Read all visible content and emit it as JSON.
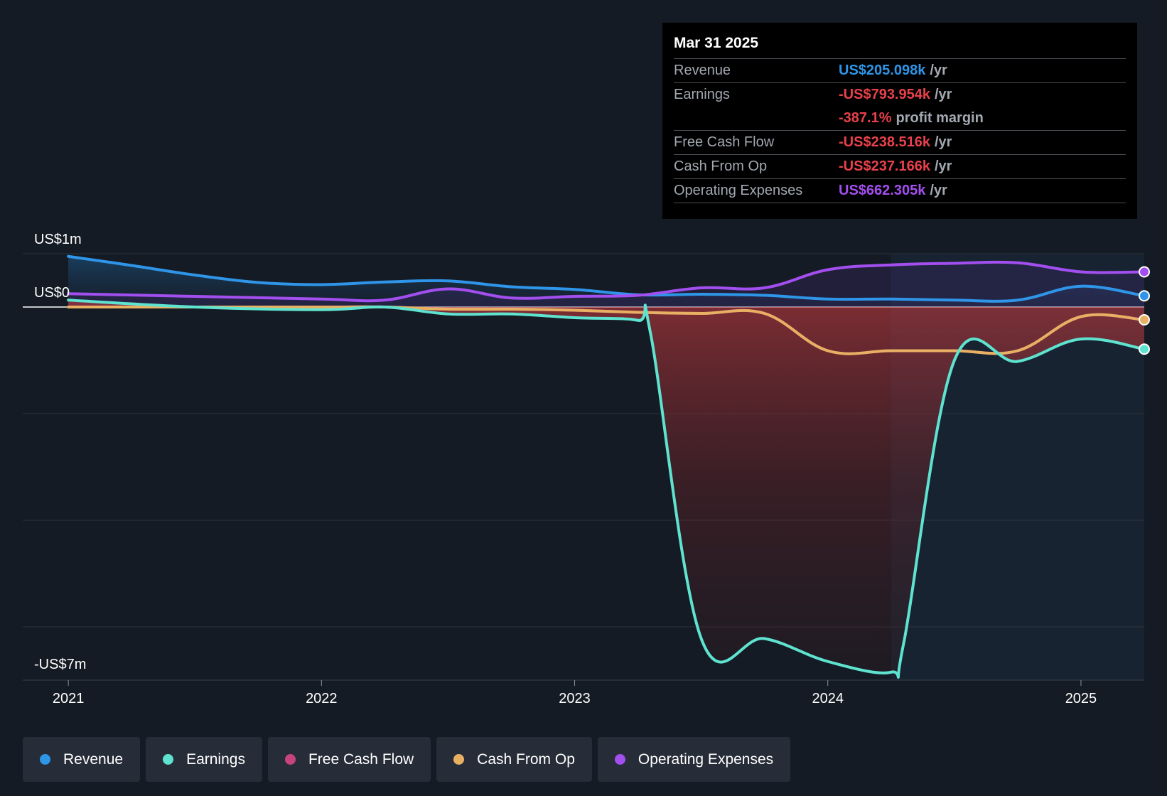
{
  "tooltip": {
    "date": "Mar 31 2025",
    "rows": [
      {
        "label": "Revenue",
        "value": "US$205.098k",
        "unit": "/yr",
        "color": "#2f95e8"
      },
      {
        "label": "Earnings",
        "value": "-US$793.954k",
        "unit": "/yr",
        "color": "#e8414b"
      },
      {
        "label": "",
        "value": "-387.1%",
        "unit": "profit margin",
        "color": "#e8414b"
      },
      {
        "label": "Free Cash Flow",
        "value": "-US$238.516k",
        "unit": "/yr",
        "color": "#e8414b"
      },
      {
        "label": "Cash From Op",
        "value": "-US$237.166k",
        "unit": "/yr",
        "color": "#e8414b"
      },
      {
        "label": "Operating Expenses",
        "value": "US$662.305k",
        "unit": "/yr",
        "color": "#a34ff0"
      }
    ]
  },
  "legend": [
    {
      "label": "Revenue",
      "color": "#2f95e8"
    },
    {
      "label": "Earnings",
      "color": "#5ee3d0"
    },
    {
      "label": "Free Cash Flow",
      "color": "#c7437f"
    },
    {
      "label": "Cash From Op",
      "color": "#e8b063"
    },
    {
      "label": "Operating Expenses",
      "color": "#a34ff0"
    }
  ],
  "chart_data": {
    "type": "line",
    "title": "",
    "xlabel": "",
    "ylabel": "",
    "ylim": [
      -7,
      1
    ],
    "y_tick_labels": [
      "US$1m",
      "US$0",
      "-US$7m"
    ],
    "y_tick_values": [
      1,
      0,
      -7
    ],
    "x_tick_labels": [
      "2021",
      "2022",
      "2023",
      "2024",
      "2025"
    ],
    "x_tick_values": [
      2021,
      2022,
      2023,
      2024,
      2025
    ],
    "xlim": [
      2020.82,
      2025.25
    ],
    "highlight_start": 2024.25,
    "grid": true,
    "legend_position": "bottom",
    "series": [
      {
        "name": "Revenue",
        "color": "#2f95e8",
        "x": [
          2021.0,
          2021.25,
          2021.5,
          2021.75,
          2022.0,
          2022.25,
          2022.5,
          2022.75,
          2023.0,
          2023.25,
          2023.5,
          2023.75,
          2024.0,
          2024.25,
          2024.5,
          2024.75,
          2025.0,
          2025.25
        ],
        "y": [
          0.95,
          0.78,
          0.6,
          0.46,
          0.42,
          0.47,
          0.49,
          0.38,
          0.33,
          0.23,
          0.24,
          0.22,
          0.15,
          0.15,
          0.13,
          0.13,
          0.39,
          0.21
        ]
      },
      {
        "name": "Earnings",
        "color": "#5ee3d0",
        "x": [
          2021.0,
          2021.5,
          2022.0,
          2022.25,
          2022.5,
          2022.75,
          2023.0,
          2023.25,
          2023.3,
          2023.5,
          2023.75,
          2024.0,
          2024.25,
          2024.3,
          2024.5,
          2024.75,
          2025.0,
          2025.25
        ],
        "y": [
          0.13,
          0.0,
          -0.05,
          0.0,
          -0.13,
          -0.13,
          -0.2,
          -0.25,
          -0.5,
          -6.22,
          -6.22,
          -6.65,
          -6.85,
          -6.3,
          -1.0,
          -1.02,
          -0.6,
          -0.79
        ]
      },
      {
        "name": "Free Cash Flow",
        "color": "#c7437f",
        "x": [
          2021.0,
          2021.5,
          2022.0,
          2022.25,
          2022.5,
          2022.75,
          2023.0,
          2023.25,
          2023.5,
          2023.75,
          2024.0,
          2024.25,
          2024.5,
          2024.75,
          2025.0,
          2025.25
        ],
        "y": [
          0.0,
          0.0,
          0.0,
          0.0,
          -0.04,
          -0.04,
          -0.06,
          -0.1,
          -0.12,
          -0.12,
          -0.82,
          -0.82,
          -0.82,
          -0.82,
          -0.18,
          -0.24
        ]
      },
      {
        "name": "Cash From Op",
        "color": "#e8b063",
        "x": [
          2021.0,
          2021.5,
          2022.0,
          2022.25,
          2022.5,
          2022.75,
          2023.0,
          2023.25,
          2023.5,
          2023.75,
          2024.0,
          2024.25,
          2024.5,
          2024.75,
          2025.0,
          2025.25
        ],
        "y": [
          0.0,
          0.0,
          0.0,
          0.0,
          -0.04,
          -0.04,
          -0.06,
          -0.1,
          -0.12,
          -0.12,
          -0.82,
          -0.82,
          -0.82,
          -0.82,
          -0.18,
          -0.24
        ]
      },
      {
        "name": "Operating Expenses",
        "color": "#a34ff0",
        "x": [
          2021.0,
          2021.5,
          2022.0,
          2022.25,
          2022.5,
          2022.75,
          2023.0,
          2023.25,
          2023.5,
          2023.75,
          2024.0,
          2024.25,
          2024.5,
          2024.75,
          2025.0,
          2025.25
        ],
        "y": [
          0.25,
          0.2,
          0.15,
          0.13,
          0.34,
          0.17,
          0.2,
          0.22,
          0.36,
          0.36,
          0.7,
          0.79,
          0.82,
          0.83,
          0.66,
          0.66
        ]
      }
    ]
  }
}
